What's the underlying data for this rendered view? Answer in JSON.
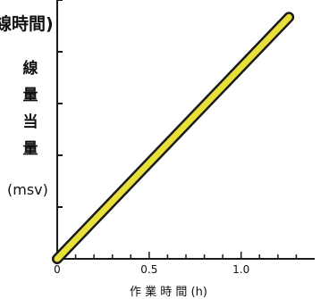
{
  "chart_data": {
    "type": "line",
    "title_fragment": "線時間)",
    "ylabel_chars": [
      "線",
      "量",
      "当",
      "量"
    ],
    "ylabel_unit": "(msv)",
    "xlabel": "作 業 時 間 (h)",
    "x_ticks": [
      "0",
      "0.5",
      "1.0"
    ],
    "x_tick_values": [
      0,
      0.5,
      1.0
    ],
    "xlim": [
      0,
      1.4
    ],
    "ylim": [
      0,
      1.0
    ],
    "series": [
      {
        "x": [
          0,
          1.26
        ],
        "y": [
          0.0,
          0.96
        ]
      }
    ],
    "line_color": "#e8e03a",
    "edge_color": "#1a1a1a"
  }
}
